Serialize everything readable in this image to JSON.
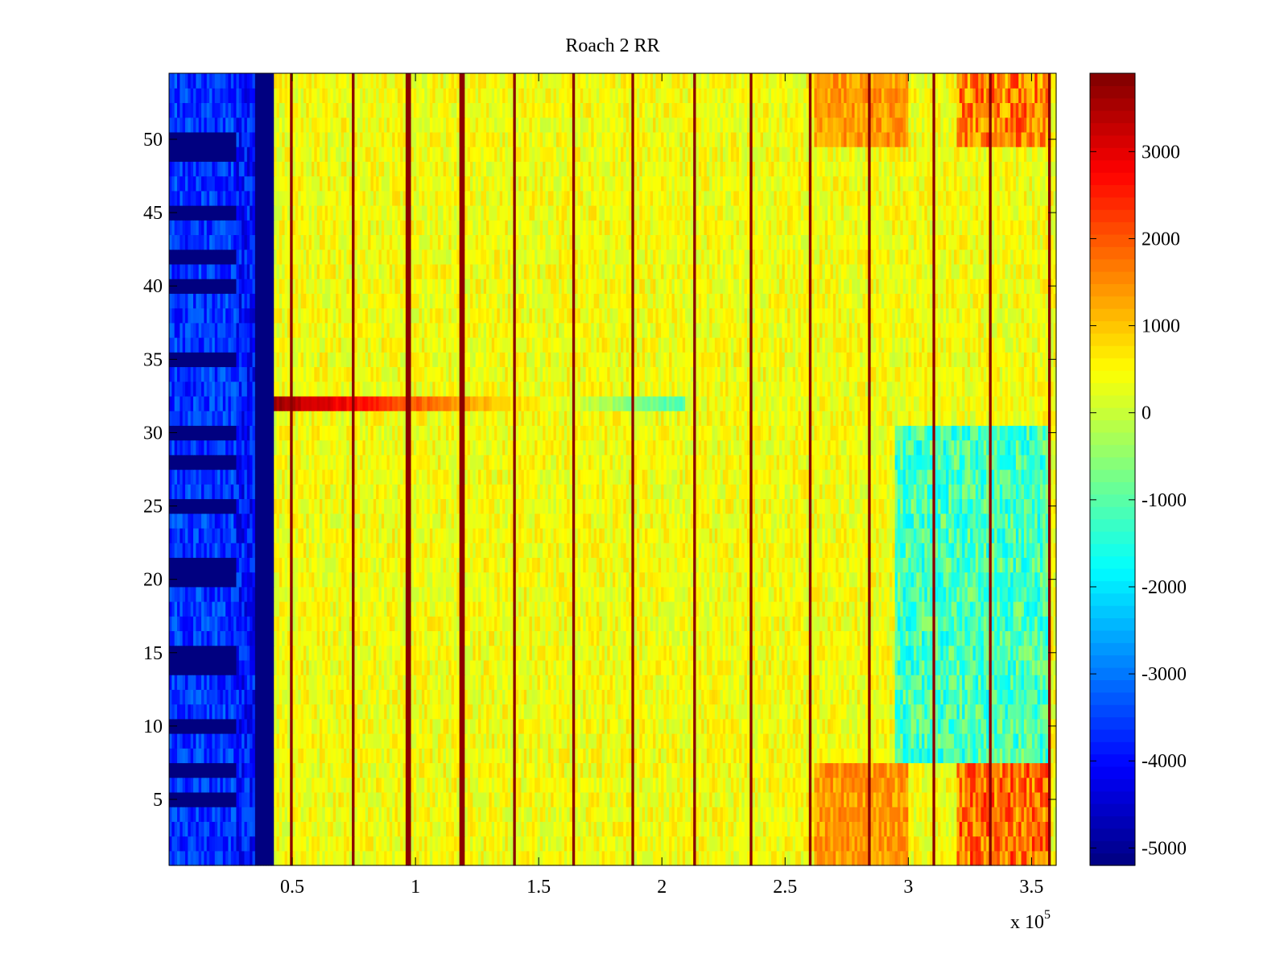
{
  "chart_data": {
    "type": "heatmap",
    "title": "Roach 2 RR",
    "xlabel": "",
    "ylabel": "",
    "x_exponent_label": "x 10",
    "x_exponent_power": "5",
    "xlim": [
      0,
      360000
    ],
    "ylim": [
      0.5,
      54.5
    ],
    "x_ticks": [
      50000,
      100000,
      150000,
      200000,
      250000,
      300000,
      350000
    ],
    "x_tick_labels": [
      "0.5",
      "1",
      "1.5",
      "2",
      "2.5",
      "3",
      "3.5"
    ],
    "y_ticks": [
      5,
      10,
      15,
      20,
      25,
      30,
      35,
      40,
      45,
      50
    ],
    "y_tick_labels": [
      "5",
      "10",
      "15",
      "20",
      "25",
      "30",
      "35",
      "40",
      "45",
      "50"
    ],
    "rows": 54,
    "colormap": "jet",
    "clim": [
      -5200,
      3900
    ],
    "colorbar_ticks": [
      3000,
      2000,
      1000,
      0,
      -1000,
      -2000,
      -3000,
      -4000,
      -5000
    ],
    "colorbar_tick_labels": [
      "3000",
      "2000",
      "1000",
      "0",
      "-1000",
      "-2000",
      "-3000",
      "-4000",
      "-5000"
    ],
    "saturated_low_region_x": [
      0,
      43000
    ],
    "periodic_peak_lines_x": [
      50000,
      75000,
      97000,
      119000,
      140000,
      164000,
      188000,
      213000,
      236000,
      260000,
      284000,
      310000,
      333000,
      357000
    ],
    "peak_line_value": 3800,
    "highlight_row": {
      "row": 32,
      "x_range": [
        43000,
        210000
      ],
      "value": 3600
    },
    "high_regions": [
      {
        "rows": [
          1,
          7
        ],
        "x_range": [
          320000,
          358000
        ],
        "value": 2500
      },
      {
        "rows": [
          50,
          54
        ],
        "x_range": [
          320000,
          358000
        ],
        "value": 2200
      }
    ],
    "low_region": {
      "rows": [
        8,
        30
      ],
      "x_range": [
        295000,
        358000
      ],
      "value": -2000
    }
  }
}
